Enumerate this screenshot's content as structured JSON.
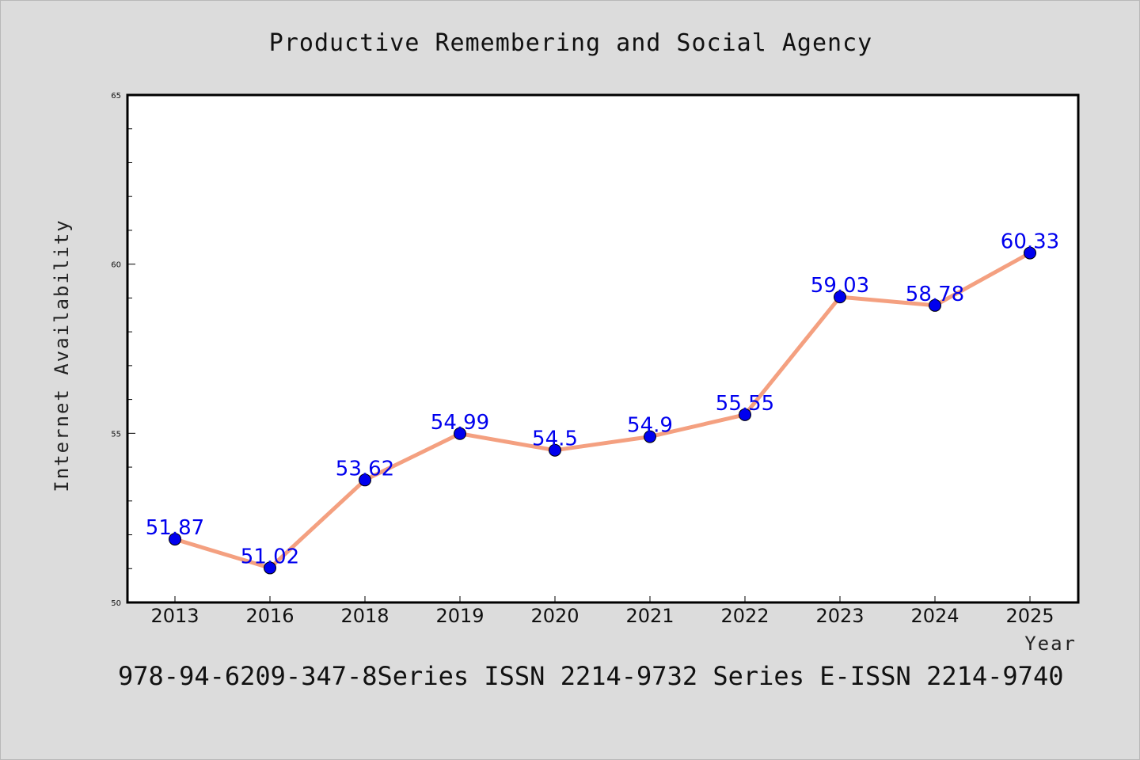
{
  "chart_data": {
    "type": "line",
    "title": "Productive Remembering and Social Agency",
    "xlabel": "Year",
    "ylabel": "Internet Availability",
    "categories": [
      "2013",
      "2016",
      "2018",
      "2019",
      "2020",
      "2021",
      "2022",
      "2023",
      "2024",
      "2025"
    ],
    "series": [
      {
        "values": [
          51.87,
          51.02,
          53.62,
          54.99,
          54.5,
          54.9,
          55.55,
          59.03,
          58.78,
          60.33
        ],
        "labels": [
          "51.87",
          "51.02",
          "53.62",
          "54.99",
          "54.5",
          "54.9",
          "55.55",
          "59.03",
          "58.78",
          "60.33"
        ],
        "line_color": "#f4a080",
        "marker_color": "#0000ee"
      }
    ],
    "ylim": [
      50,
      65
    ],
    "yticks": [
      "50",
      "55",
      "60",
      "65"
    ],
    "grid": false,
    "legend": "none"
  },
  "footer": "978-94-6209-347-8Series ISSN 2214-9732 Series E-ISSN 2214-9740",
  "colors": {
    "background": "#dcdcdc",
    "plot_background": "#ffffff",
    "line": "#f4a080",
    "marker": "#0000ee",
    "label": "#0000ee"
  }
}
